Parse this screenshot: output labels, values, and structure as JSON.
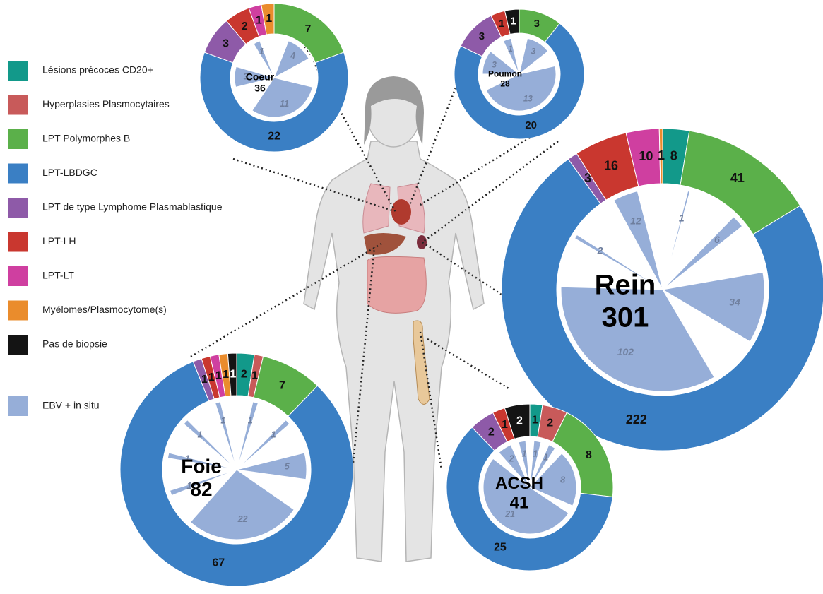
{
  "legend": {
    "categories": [
      "Lésions précoces CD20+",
      "Hyperplasies Plasmocytaires",
      "LPT Polymorphes B",
      "LPT-LBDGC",
      "LPT de type Lymphome Plasmablastique",
      "LPT-LH",
      "LPT-LT",
      "Myélomes/Plasmocytome(s)",
      "Pas de biopsie"
    ],
    "colors": [
      "#12998a",
      "#c85a5a",
      "#5bb04a",
      "#3a7fc4",
      "#8e5aa8",
      "#c9372f",
      "#cf3fa0",
      "#ea8c2c",
      "#141414"
    ],
    "ebv_label": "EBV + in situ",
    "ebv_color": "#96aed8"
  },
  "chart_data": [
    {
      "type": "donut",
      "name": "Coeur",
      "total": 36,
      "values": [
        null,
        null,
        7,
        22,
        3,
        2,
        1,
        1,
        null
      ],
      "ebv_values": [
        4,
        11,
        3,
        1
      ]
    },
    {
      "type": "donut",
      "name": "Poumon",
      "total": 28,
      "values": [
        null,
        null,
        3,
        20,
        3,
        1,
        null,
        null,
        1
      ],
      "ebv_values": [
        3,
        13,
        3,
        1
      ]
    },
    {
      "type": "donut",
      "name": "Rein",
      "total": 301,
      "values": [
        8,
        null,
        41,
        222,
        3,
        16,
        10,
        1,
        null
      ],
      "ebv_values": [
        1,
        6,
        34,
        102,
        2,
        12
      ]
    },
    {
      "type": "donut",
      "name": "Foie",
      "total": 82,
      "values": [
        2,
        1,
        7,
        67,
        1,
        1,
        1,
        1,
        1
      ],
      "ebv_values": [
        1,
        1,
        5,
        22,
        1,
        1,
        1,
        1
      ]
    },
    {
      "type": "donut",
      "name": "ACSH",
      "total": 41,
      "values": [
        1,
        2,
        8,
        25,
        2,
        1,
        null,
        null,
        2
      ],
      "ebv_values": [
        1,
        1,
        8,
        21,
        2,
        1
      ]
    }
  ]
}
